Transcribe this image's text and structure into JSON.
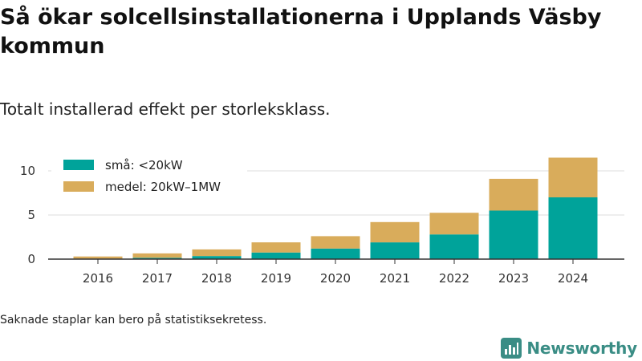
{
  "title": "Så ökar solcellsinstallationerna i Upplands Väsby kommun",
  "subtitle": "Totalt installerad effekt per storleksklass.",
  "footnote": "Saknade staplar kan bero på statistiksekretess.",
  "brand": {
    "name": "Newsworthy",
    "icon": "newsworthy-logo-icon",
    "color": "#3a8d85"
  },
  "chart_data": {
    "type": "bar",
    "stacked": true,
    "categories": [
      "2016",
      "2017",
      "2018",
      "2019",
      "2020",
      "2021",
      "2022",
      "2023",
      "2024"
    ],
    "series": [
      {
        "name": "små: <20kW",
        "color": "#00a39a",
        "values": [
          0.05,
          0.15,
          0.35,
          0.75,
          1.2,
          1.9,
          2.8,
          5.5,
          7.0
        ]
      },
      {
        "name": "medel: 20kW–1MW",
        "color": "#d9ac5b",
        "values": [
          0.25,
          0.5,
          0.75,
          1.15,
          1.4,
          2.3,
          2.45,
          3.6,
          4.5
        ]
      }
    ],
    "yticks": [
      0,
      5,
      10
    ],
    "ylim": [
      0,
      12
    ],
    "grid": true,
    "legend_position": "top-left",
    "xlabel": "",
    "ylabel": ""
  }
}
